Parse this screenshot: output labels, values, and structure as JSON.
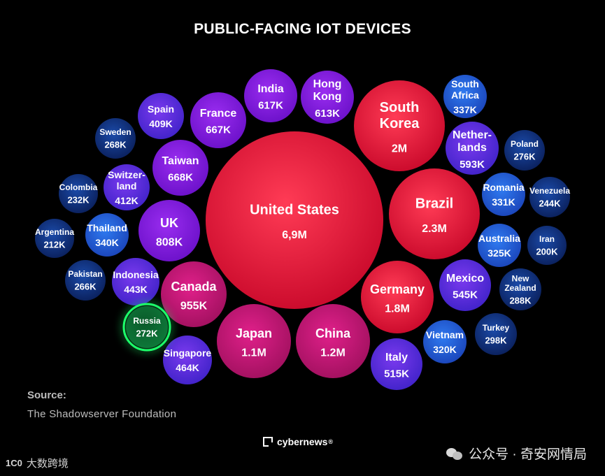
{
  "chart_data": {
    "type": "bubble",
    "title": "PUBLIC-FACING IOT DEVICES",
    "unit": "devices",
    "bubbles": [
      {
        "country": "United States",
        "label": "6,9M",
        "value": 6900000
      },
      {
        "country": "Brazil",
        "label": "2.3M",
        "value": 2300000
      },
      {
        "country": "South Korea",
        "label": "2M",
        "value": 2000000
      },
      {
        "country": "Germany",
        "label": "1.8M",
        "value": 1800000
      },
      {
        "country": "China",
        "label": "1.2M",
        "value": 1200000
      },
      {
        "country": "Japan",
        "label": "1.1M",
        "value": 1100000
      },
      {
        "country": "Canada",
        "label": "955K",
        "value": 955000
      },
      {
        "country": "UK",
        "label": "808K",
        "value": 808000
      },
      {
        "country": "Taiwan",
        "label": "668K",
        "value": 668000
      },
      {
        "country": "France",
        "label": "667K",
        "value": 667000
      },
      {
        "country": "India",
        "label": "617K",
        "value": 617000
      },
      {
        "country": "Hong Kong",
        "label": "613K",
        "value": 613000
      },
      {
        "country": "Netherlands",
        "label": "593K",
        "value": 593000
      },
      {
        "country": "Mexico",
        "label": "545K",
        "value": 545000
      },
      {
        "country": "Italy",
        "label": "515K",
        "value": 515000
      },
      {
        "country": "Singapore",
        "label": "464K",
        "value": 464000
      },
      {
        "country": "Indonesia",
        "label": "443K",
        "value": 443000
      },
      {
        "country": "Switzerland",
        "label": "412K",
        "value": 412000
      },
      {
        "country": "Spain",
        "label": "409K",
        "value": 409000
      },
      {
        "country": "Thailand",
        "label": "340K",
        "value": 340000
      },
      {
        "country": "South Africa",
        "label": "337K",
        "value": 337000
      },
      {
        "country": "Romania",
        "label": "331K",
        "value": 331000
      },
      {
        "country": "Australia",
        "label": "325K",
        "value": 325000
      },
      {
        "country": "Vietnam",
        "label": "320K",
        "value": 320000
      },
      {
        "country": "Turkey",
        "label": "298K",
        "value": 298000
      },
      {
        "country": "New Zealand",
        "label": "288K",
        "value": 288000
      },
      {
        "country": "Poland",
        "label": "276K",
        "value": 276000
      },
      {
        "country": "Russia",
        "label": "272K",
        "value": 272000,
        "highlighted": true
      },
      {
        "country": "Sweden",
        "label": "268K",
        "value": 268000
      },
      {
        "country": "Pakistan",
        "label": "266K",
        "value": 266000
      },
      {
        "country": "Venezuela",
        "label": "244K",
        "value": 244000
      },
      {
        "country": "Colombia",
        "label": "232K",
        "value": 232000
      },
      {
        "country": "Argentina",
        "label": "212K",
        "value": 212000
      },
      {
        "country": "Iran",
        "label": "200K",
        "value": 200000
      }
    ],
    "display_names": {
      "South Korea": [
        "South",
        "Korea"
      ],
      "Hong Kong": [
        "Hong",
        "Kong"
      ],
      "South Africa": [
        "South",
        "Africa"
      ],
      "Netherlands": [
        "Nether-",
        "lands"
      ],
      "Switzerland": [
        "Switzer-",
        "land"
      ],
      "New Zealand": [
        "New",
        "Zealand"
      ]
    }
  },
  "source": {
    "label": "Source:",
    "value": "The Shadowserver Foundation"
  },
  "brand": {
    "name": "cybernews",
    "mark": "®"
  },
  "watermarks": {
    "left_logo": "1C0",
    "left_text": "大数跨境",
    "right_text": "公众号 · 奇安网情局"
  },
  "colors": {
    "background": "#000000",
    "large": "#ff1e3c",
    "large_inner": "#ff3b55",
    "mid": "#d8136a",
    "purple": "#8a1fe0",
    "blue": "#2a6fe0",
    "navy": "#0d2a73",
    "highlight_ring": "#1dff6a",
    "highlight_fill": "#0a5a2a"
  }
}
